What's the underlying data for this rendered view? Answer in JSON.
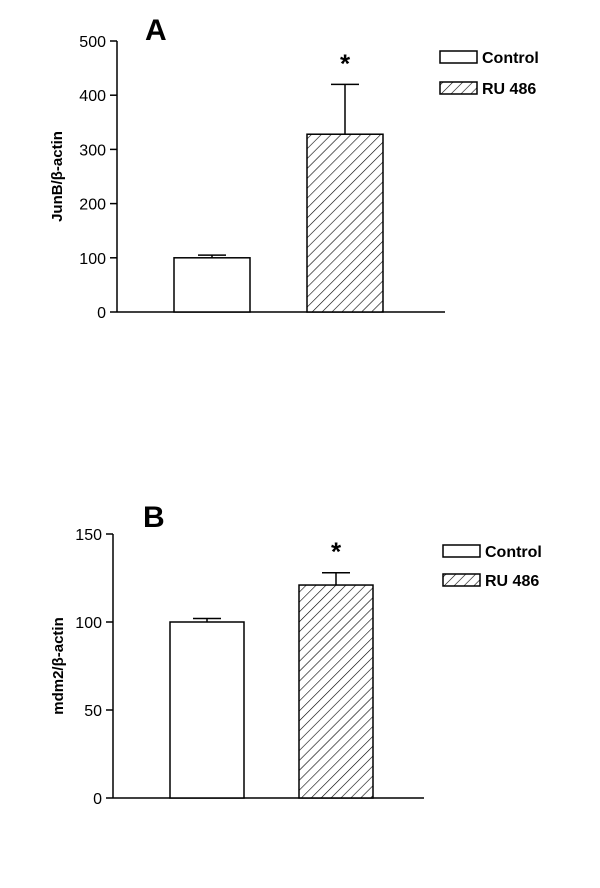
{
  "chart_data": [
    {
      "type": "bar",
      "panel": "A",
      "ylabel": "JunB/β-actin",
      "xlabel": "",
      "ylim": [
        0,
        500
      ],
      "yticks": [
        0,
        100,
        200,
        300,
        400,
        500
      ],
      "categories": [
        "Control",
        "RU 486"
      ],
      "values": [
        100,
        328
      ],
      "errors": [
        5,
        92
      ],
      "significance": [
        "",
        "*"
      ],
      "legend": [
        {
          "label": "Control",
          "style": "open"
        },
        {
          "label": "RU 486",
          "style": "hatched"
        }
      ],
      "legend_position": "top-right",
      "grid": false
    },
    {
      "type": "bar",
      "panel": "B",
      "ylabel": "mdm2/β-actin",
      "xlabel": "",
      "ylim": [
        0,
        150
      ],
      "yticks": [
        0,
        50,
        100,
        150
      ],
      "categories": [
        "Control",
        "RU 486"
      ],
      "values": [
        100,
        121
      ],
      "errors": [
        2,
        7
      ],
      "significance": [
        "",
        "*"
      ],
      "legend": [
        {
          "label": "Control",
          "style": "open"
        },
        {
          "label": "RU 486",
          "style": "hatched"
        }
      ],
      "legend_position": "top-right",
      "grid": false
    }
  ],
  "colors": {
    "control_fill": "#ffffff",
    "hatch_stroke": "#000000"
  }
}
